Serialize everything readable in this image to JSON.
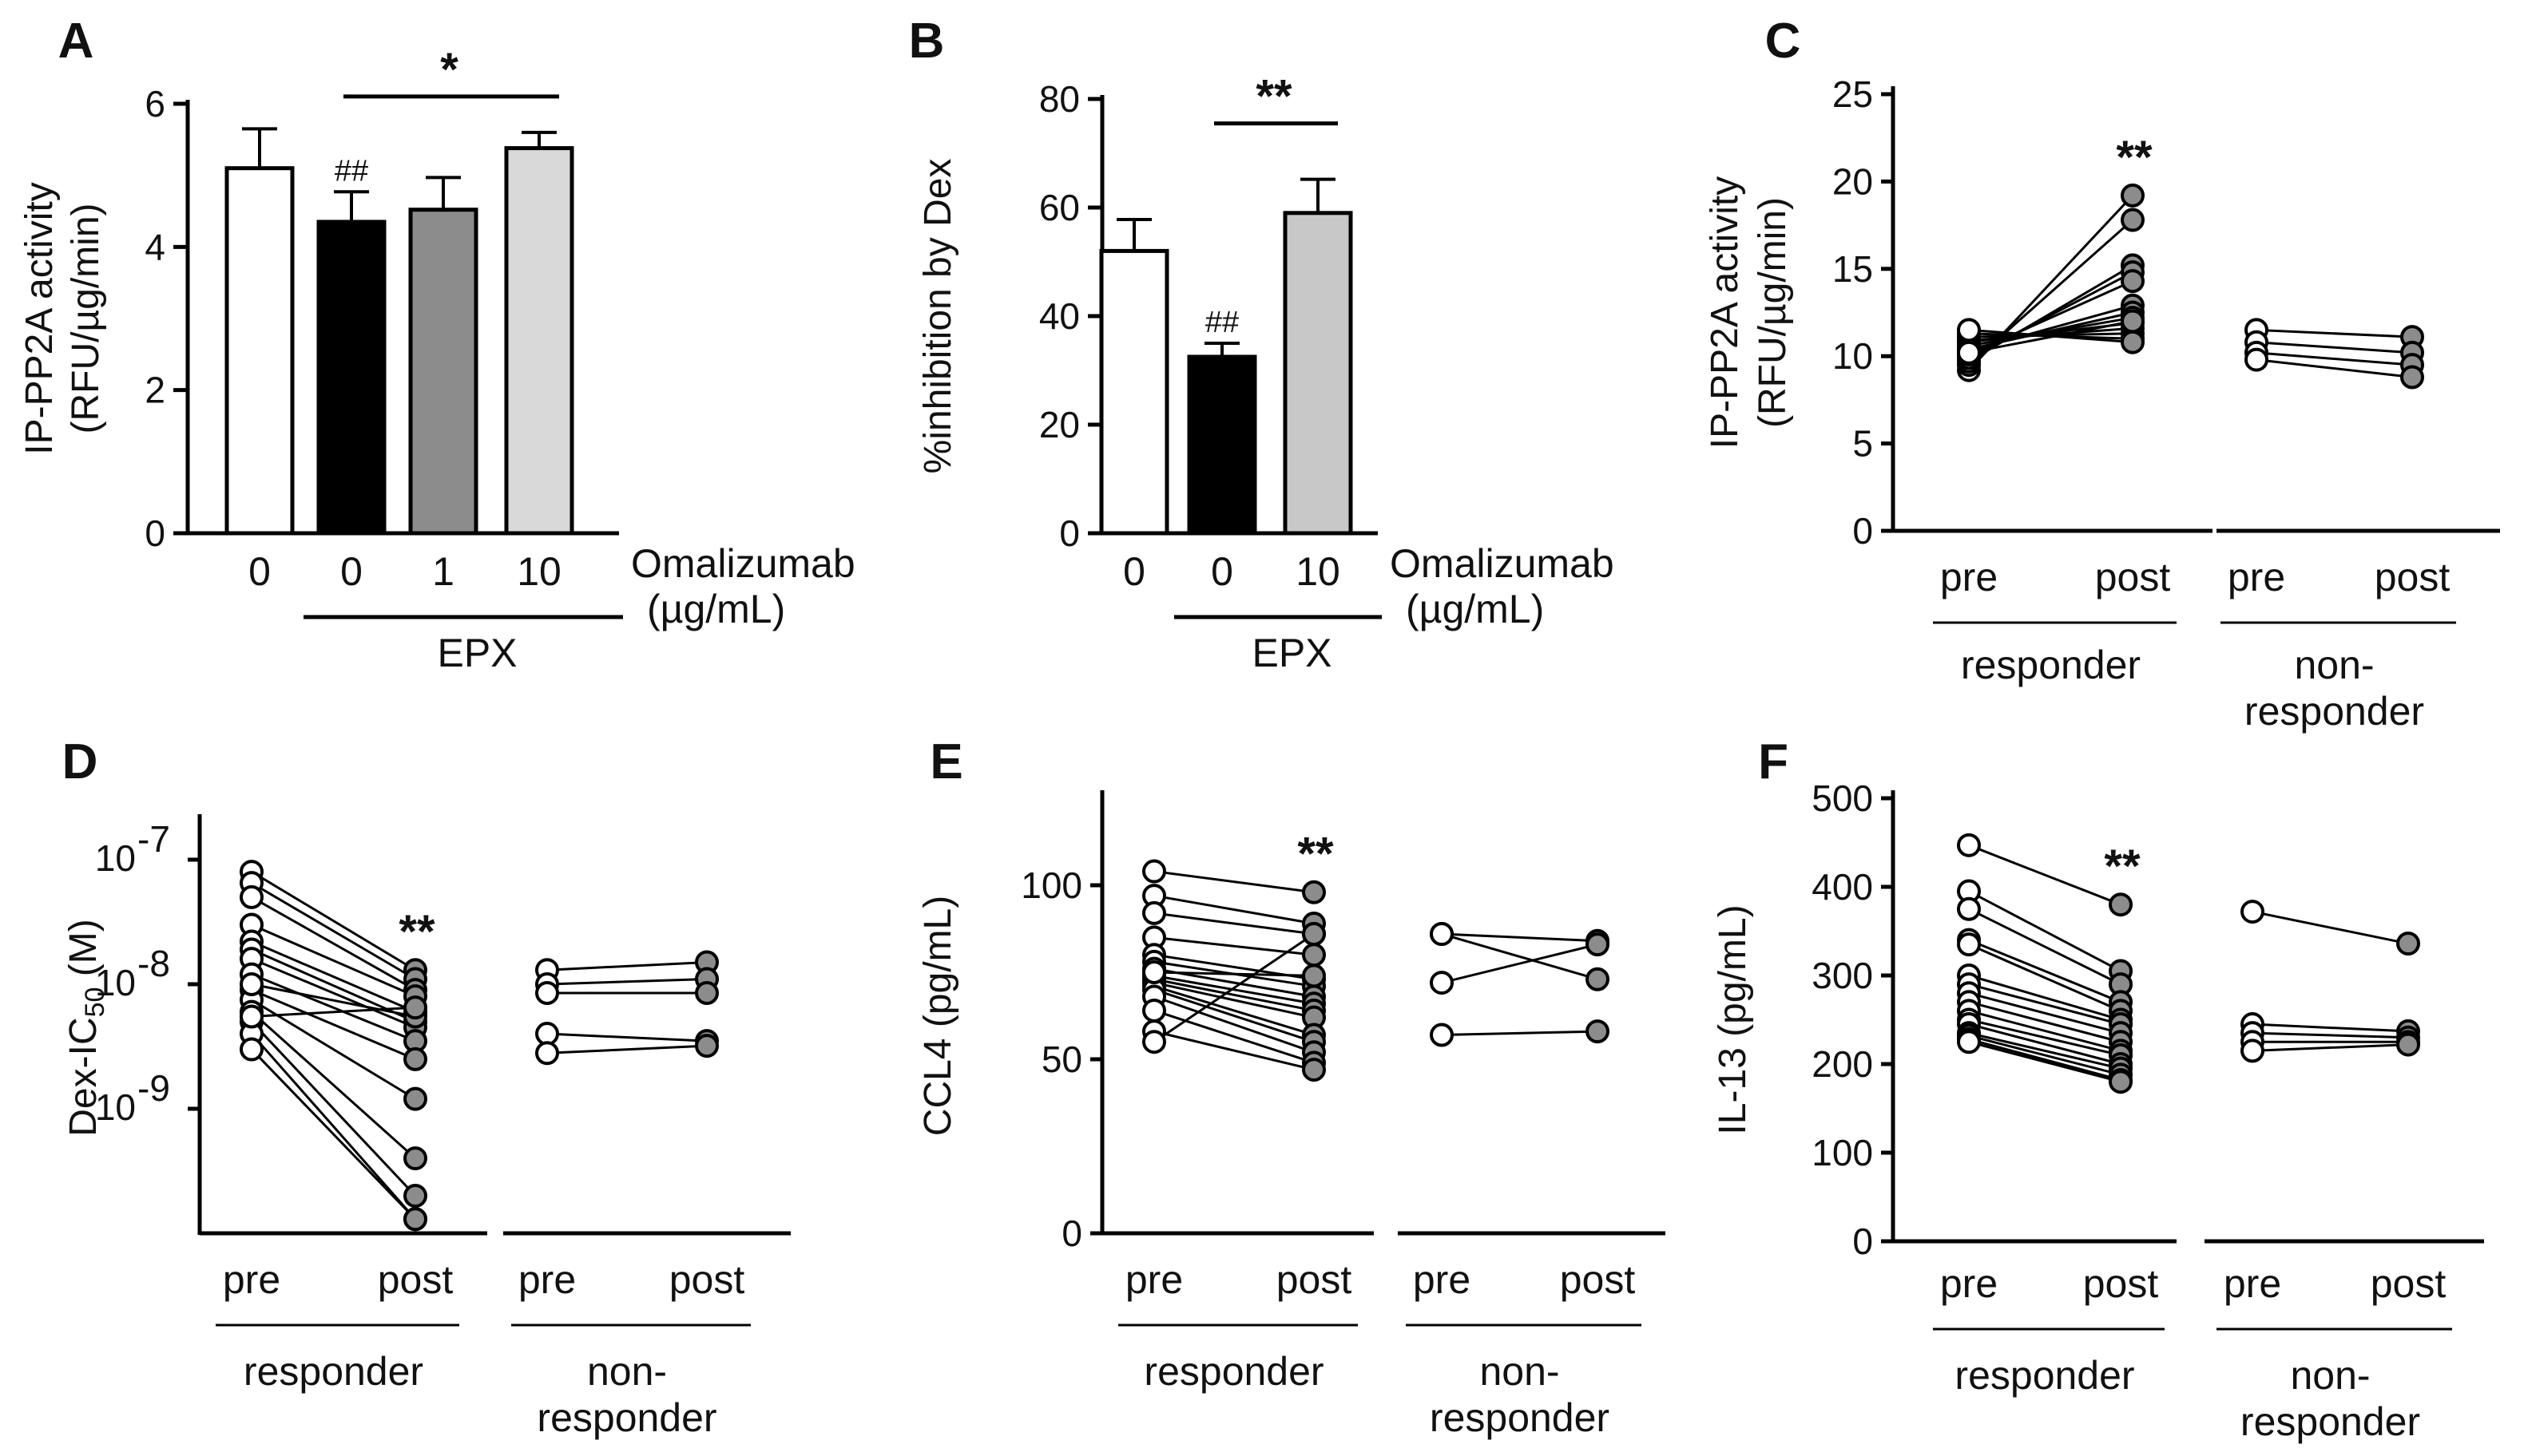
{
  "chart_data": [
    {
      "panel": "A",
      "type": "bar",
      "ylabel_line1": "IP-PP2A activity",
      "ylabel_line2": "(RFU/µg/min)",
      "ylim": [
        0,
        6
      ],
      "yticks": [
        "0",
        "2",
        "4",
        "6"
      ],
      "categories": [
        "0",
        "0",
        "1",
        "10"
      ],
      "values": [
        5.1,
        4.35,
        4.52,
        5.38
      ],
      "errors": [
        0.55,
        0.42,
        0.45,
        0.22
      ],
      "bar_colors": [
        "#ffffff",
        "#000000",
        "#8c8c8c",
        "#d9d9d9"
      ],
      "treatment_label": "Omalizumab",
      "treatment_unit": "(µg/mL)",
      "group_label": "EPX",
      "hash_label": "##",
      "significance": "*"
    },
    {
      "panel": "B",
      "type": "bar",
      "ylabel": "%inhibition by Dex",
      "ylim": [
        0,
        80
      ],
      "yticks": [
        "0",
        "20",
        "40",
        "60",
        "80"
      ],
      "categories": [
        "0",
        "0",
        "10"
      ],
      "values": [
        52,
        32.5,
        59
      ],
      "errors": [
        5.8,
        2.5,
        6.2
      ],
      "bar_colors": [
        "#ffffff",
        "#000000",
        "#c8c8c8"
      ],
      "treatment_label": "Omalizumab",
      "treatment_unit": "(µg/mL)",
      "group_label": "EPX",
      "hash_label": "##",
      "significance": "**"
    },
    {
      "panel": "C",
      "type": "paired-dot",
      "ylabel_line1": "IP-PP2A activity",
      "ylabel_line2": "(RFU/µg/min)",
      "ylim": [
        0,
        25
      ],
      "yticks": [
        "0",
        "5",
        "10",
        "15",
        "20",
        "25"
      ],
      "x_labels": [
        "pre",
        "post"
      ],
      "groups": [
        {
          "label": "responder",
          "pairs": [
            [
              9.2,
              19.2
            ],
            [
              9.5,
              17.8
            ],
            [
              9.7,
              15.2
            ],
            [
              9.9,
              14.8
            ],
            [
              10.1,
              14.3
            ],
            [
              10.3,
              12.9
            ],
            [
              10.4,
              12.5
            ],
            [
              10.6,
              12.2
            ],
            [
              10.8,
              11.9
            ],
            [
              10.9,
              11.6
            ],
            [
              11.1,
              11.3
            ],
            [
              11.3,
              11.0
            ],
            [
              11.5,
              10.8
            ],
            [
              10.2,
              12.0
            ]
          ]
        },
        {
          "label": "non-\nresponder",
          "pairs": [
            [
              11.5,
              11.1
            ],
            [
              10.8,
              10.2
            ],
            [
              10.2,
              9.5
            ],
            [
              9.8,
              8.8
            ]
          ]
        }
      ],
      "significance": "**"
    },
    {
      "panel": "D",
      "type": "paired-dot",
      "scale": "log",
      "ylabel": "Dex-IC",
      "ylabel_sub": "50",
      "ylabel_unit": " (M)",
      "ylim": [
        1e-10,
        2e-07
      ],
      "yticks": [
        {
          "base": "10",
          "exp": "-7",
          "value": 1e-07
        },
        {
          "base": "10",
          "exp": "-8",
          "value": 1e-08
        },
        {
          "base": "10",
          "exp": "-9",
          "value": 1e-09
        }
      ],
      "x_labels": [
        "pre",
        "post"
      ],
      "groups": [
        {
          "label": "responder",
          "pairs": [
            [
              8e-08,
              1.3e-08
            ],
            [
              6.5e-08,
              1.1e-08
            ],
            [
              5e-08,
              9e-09
            ],
            [
              3e-08,
              8e-09
            ],
            [
              2.2e-08,
              6e-09
            ],
            [
              1.9e-08,
              5e-09
            ],
            [
              1.6e-08,
              4.5e-09
            ],
            [
              1.2e-08,
              3.5e-09
            ],
            [
              9e-09,
              2.5e-09
            ],
            [
              7.5e-09,
              1.2e-09
            ],
            [
              6e-09,
              4e-10
            ],
            [
              5e-09,
              2e-10
            ],
            [
              4e-09,
              1.3e-10
            ],
            [
              3e-09,
              1.3e-10
            ],
            [
              1e-08,
              5.5e-09
            ],
            [
              5.5e-09,
              6.5e-09
            ]
          ]
        },
        {
          "label": "non-\nresponder",
          "pairs": [
            [
              1.3e-08,
              1.5e-08
            ],
            [
              1e-08,
              1.1e-08
            ],
            [
              8.5e-09,
              8.5e-09
            ],
            [
              4e-09,
              3.5e-09
            ],
            [
              2.8e-09,
              3.2e-09
            ]
          ]
        }
      ],
      "significance": "**"
    },
    {
      "panel": "E",
      "type": "paired-dot",
      "ylabel": "CCL4 (pg/mL)",
      "ylim": [
        0,
        125
      ],
      "yticks": [
        "0",
        "50",
        "100"
      ],
      "x_labels": [
        "pre",
        "post"
      ],
      "groups": [
        {
          "label": "responder",
          "pairs": [
            [
              104,
              98
            ],
            [
              97,
              89
            ],
            [
              92,
              86
            ],
            [
              85,
              80
            ],
            [
              80,
              73
            ],
            [
              78,
              71
            ],
            [
              76,
              68
            ],
            [
              74,
              66
            ],
            [
              73,
              64
            ],
            [
              72,
              62
            ],
            [
              71,
              57
            ],
            [
              70,
              55
            ],
            [
              68,
              52
            ],
            [
              64,
              49
            ],
            [
              58,
              47
            ],
            [
              55,
              86
            ],
            [
              75,
              74
            ]
          ]
        },
        {
          "label": "non-\nresponder",
          "pairs": [
            [
              86,
              84
            ],
            [
              86,
              73
            ],
            [
              72,
              83
            ],
            [
              57,
              58
            ]
          ]
        }
      ],
      "significance": "**"
    },
    {
      "panel": "F",
      "type": "paired-dot",
      "ylabel": "IL-13 (pg/mL)",
      "ylim": [
        0,
        500
      ],
      "yticks": [
        "0",
        "100",
        "200",
        "300",
        "400",
        "500"
      ],
      "x_labels": [
        "pre",
        "post"
      ],
      "groups": [
        {
          "label": "responder",
          "pairs": [
            [
              447,
              380
            ],
            [
              395,
              305
            ],
            [
              375,
              290
            ],
            [
              340,
              270
            ],
            [
              335,
              260
            ],
            [
              300,
              250
            ],
            [
              290,
              245
            ],
            [
              280,
              235
            ],
            [
              270,
              225
            ],
            [
              260,
              215
            ],
            [
              250,
              210
            ],
            [
              245,
              200
            ],
            [
              235,
              195
            ],
            [
              232,
              188
            ],
            [
              228,
              182
            ],
            [
              225,
              180
            ]
          ]
        },
        {
          "label": "non-\nresponder",
          "pairs": [
            [
              372,
              336
            ],
            [
              245,
              237
            ],
            [
              235,
              230
            ],
            [
              225,
              225
            ],
            [
              215,
              222
            ]
          ]
        }
      ],
      "significance": "**"
    }
  ]
}
